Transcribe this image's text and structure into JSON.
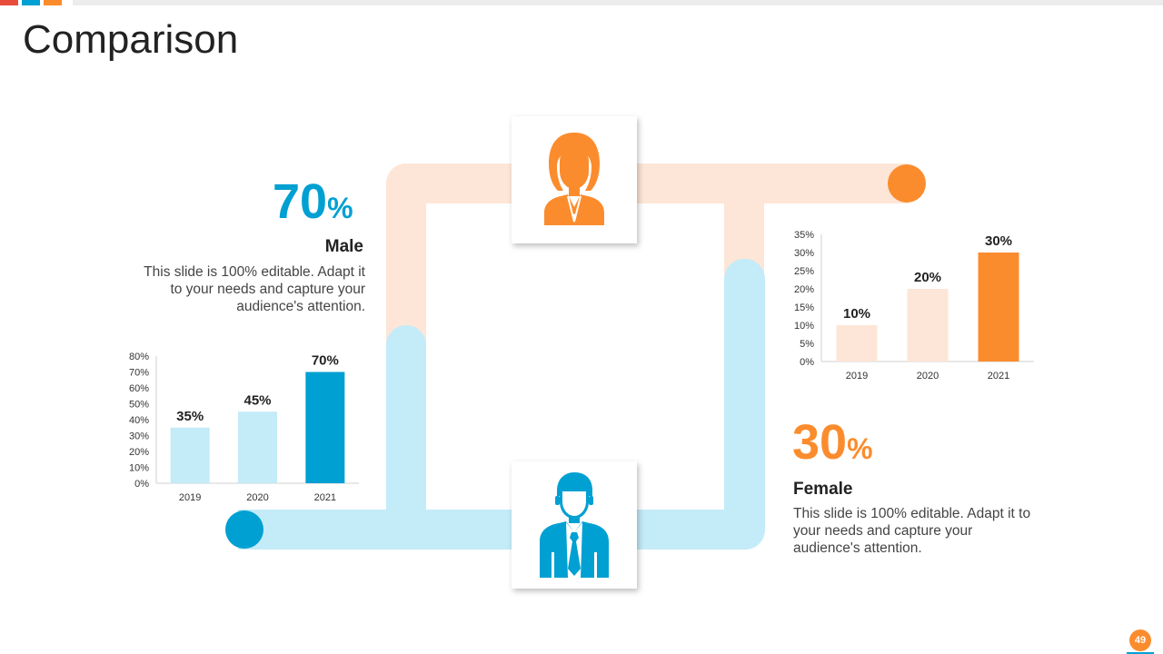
{
  "slide": {
    "title": "Comparison",
    "page_number": "49"
  },
  "colors": {
    "blue": "#00a0d2",
    "light_blue": "#c4ebf8",
    "orange": "#fb8c2d",
    "light_orange": "#fde6d7",
    "red": "#e84c3d",
    "text_dark": "#222222",
    "text_body": "#444444"
  },
  "icons": {
    "female": "female-avatar-icon",
    "male": "male-businessman-icon"
  },
  "male": {
    "percent_value": "70",
    "percent_unit": "%",
    "label": "Male",
    "description": "This slide is 100% editable. Adapt it to your needs and capture your audience's attention."
  },
  "female": {
    "percent_value": "30",
    "percent_unit": "%",
    "label": "Female",
    "description": "This slide is 100% editable. Adapt it to your needs and capture your audience's attention."
  },
  "chart_data": [
    {
      "type": "bar",
      "categories": [
        "2019",
        "2020",
        "2021"
      ],
      "series": [
        {
          "values": [
            35,
            45,
            70
          ]
        }
      ],
      "data_labels": [
        "35%",
        "45%",
        "70%"
      ],
      "ylim": [
        0,
        80
      ],
      "yticks": [
        "0%",
        "10%",
        "20%",
        "30%",
        "40%",
        "50%",
        "60%",
        "70%",
        "80%"
      ],
      "bar_colors": [
        "#c4ebf8",
        "#c4ebf8",
        "#00a0d2"
      ],
      "grid": false
    },
    {
      "type": "bar",
      "categories": [
        "2019",
        "2020",
        "2021"
      ],
      "series": [
        {
          "values": [
            10,
            20,
            30
          ]
        }
      ],
      "data_labels": [
        "10%",
        "20%",
        "30%"
      ],
      "ylim": [
        0,
        35
      ],
      "yticks": [
        "0%",
        "5%",
        "10%",
        "15%",
        "20%",
        "25%",
        "30%",
        "35%"
      ],
      "bar_colors": [
        "#fde6d7",
        "#fde6d7",
        "#fb8c2d"
      ],
      "grid": false
    }
  ]
}
